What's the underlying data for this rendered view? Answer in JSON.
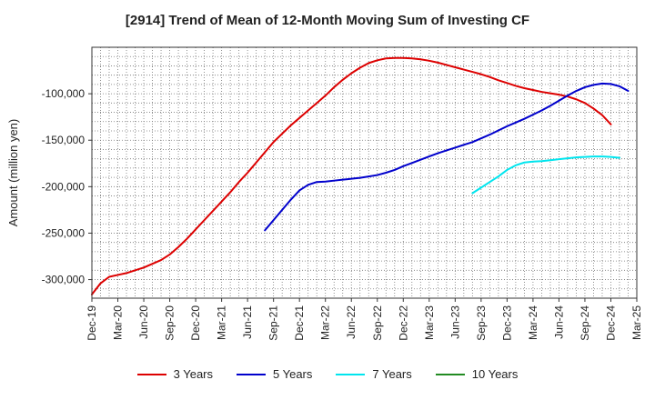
{
  "chart_data": {
    "type": "line",
    "title": "[2914]  Trend of Mean of 12-Month Moving Sum of Investing CF",
    "xlabel": "",
    "ylabel": "Amount (million yen)",
    "ylim": [
      -320000,
      -50000
    ],
    "xlim": [
      "2019-12",
      "2025-03"
    ],
    "grid": true,
    "legend_position": "bottom",
    "x_ticks": [
      "Dec-19",
      "Mar-20",
      "Jun-20",
      "Sep-20",
      "Dec-20",
      "Mar-21",
      "Jun-21",
      "Sep-21",
      "Dec-21",
      "Mar-22",
      "Jun-22",
      "Sep-22",
      "Dec-22",
      "Mar-23",
      "Jun-23",
      "Sep-23",
      "Dec-23",
      "Mar-24",
      "Jun-24",
      "Sep-24",
      "Dec-24",
      "Mar-25"
    ],
    "y_ticks": [
      {
        "value": -100000,
        "label": "-100,000"
      },
      {
        "value": -150000,
        "label": "-150,000"
      },
      {
        "value": -200000,
        "label": "-200,000"
      },
      {
        "value": -250000,
        "label": "-250,000"
      },
      {
        "value": -300000,
        "label": "-300,000"
      }
    ],
    "series": [
      {
        "name": "3 Years",
        "color": "#dd0000",
        "points": [
          [
            "2019-12",
            -316000
          ],
          [
            "2020-01",
            -304000
          ],
          [
            "2020-02",
            -297000
          ],
          [
            "2020-03",
            -295000
          ],
          [
            "2020-04",
            -293000
          ],
          [
            "2020-05",
            -290000
          ],
          [
            "2020-06",
            -287000
          ],
          [
            "2020-07",
            -283000
          ],
          [
            "2020-08",
            -279000
          ],
          [
            "2020-09",
            -273000
          ],
          [
            "2020-10",
            -265000
          ],
          [
            "2020-11",
            -256000
          ],
          [
            "2020-12",
            -246000
          ],
          [
            "2021-01",
            -236000
          ],
          [
            "2021-02",
            -226000
          ],
          [
            "2021-03",
            -216000
          ],
          [
            "2021-04",
            -206000
          ],
          [
            "2021-05",
            -195000
          ],
          [
            "2021-06",
            -185000
          ],
          [
            "2021-07",
            -174000
          ],
          [
            "2021-08",
            -163000
          ],
          [
            "2021-09",
            -152000
          ],
          [
            "2021-10",
            -143000
          ],
          [
            "2021-11",
            -134000
          ],
          [
            "2021-12",
            -126000
          ],
          [
            "2022-01",
            -118000
          ],
          [
            "2022-02",
            -110000
          ],
          [
            "2022-03",
            -102000
          ],
          [
            "2022-04",
            -93000
          ],
          [
            "2022-05",
            -85000
          ],
          [
            "2022-06",
            -78000
          ],
          [
            "2022-07",
            -72000
          ],
          [
            "2022-08",
            -67000
          ],
          [
            "2022-09",
            -64000
          ],
          [
            "2022-10",
            -62000
          ],
          [
            "2022-11",
            -61500
          ],
          [
            "2022-12",
            -61500
          ],
          [
            "2023-01",
            -62000
          ],
          [
            "2023-02",
            -63000
          ],
          [
            "2023-03",
            -64500
          ],
          [
            "2023-04",
            -66500
          ],
          [
            "2023-05",
            -69000
          ],
          [
            "2023-06",
            -71500
          ],
          [
            "2023-07",
            -74000
          ],
          [
            "2023-08",
            -76500
          ],
          [
            "2023-09",
            -79000
          ],
          [
            "2023-10",
            -82000
          ],
          [
            "2023-11",
            -85500
          ],
          [
            "2023-12",
            -88500
          ],
          [
            "2024-01",
            -91500
          ],
          [
            "2024-02",
            -94000
          ],
          [
            "2024-03",
            -96000
          ],
          [
            "2024-04",
            -98000
          ],
          [
            "2024-05",
            -99500
          ],
          [
            "2024-06",
            -101000
          ],
          [
            "2024-07",
            -103000
          ],
          [
            "2024-08",
            -106000
          ],
          [
            "2024-09",
            -110000
          ],
          [
            "2024-10",
            -116000
          ],
          [
            "2024-11",
            -123000
          ],
          [
            "2024-12",
            -133000
          ]
        ]
      },
      {
        "name": "5 Years",
        "color": "#0000cc",
        "points": [
          [
            "2021-08",
            -247000
          ],
          [
            "2021-09",
            -236000
          ],
          [
            "2021-10",
            -225000
          ],
          [
            "2021-11",
            -214000
          ],
          [
            "2021-12",
            -204000
          ],
          [
            "2022-01",
            -198000
          ],
          [
            "2022-02",
            -195000
          ],
          [
            "2022-03",
            -194500
          ],
          [
            "2022-04",
            -193500
          ],
          [
            "2022-05",
            -192500
          ],
          [
            "2022-06",
            -191500
          ],
          [
            "2022-07",
            -190500
          ],
          [
            "2022-08",
            -189000
          ],
          [
            "2022-09",
            -187500
          ],
          [
            "2022-10",
            -185000
          ],
          [
            "2022-11",
            -182000
          ],
          [
            "2022-12",
            -178000
          ],
          [
            "2023-01",
            -174500
          ],
          [
            "2023-02",
            -171000
          ],
          [
            "2023-03",
            -167500
          ],
          [
            "2023-04",
            -164000
          ],
          [
            "2023-05",
            -161000
          ],
          [
            "2023-06",
            -158000
          ],
          [
            "2023-07",
            -155000
          ],
          [
            "2023-08",
            -152000
          ],
          [
            "2023-09",
            -148000
          ],
          [
            "2023-10",
            -144000
          ],
          [
            "2023-11",
            -139500
          ],
          [
            "2023-12",
            -135000
          ],
          [
            "2024-01",
            -131000
          ],
          [
            "2024-02",
            -127000
          ],
          [
            "2024-03",
            -122500
          ],
          [
            "2024-04",
            -118000
          ],
          [
            "2024-05",
            -113000
          ],
          [
            "2024-06",
            -107500
          ],
          [
            "2024-07",
            -102000
          ],
          [
            "2024-08",
            -97000
          ],
          [
            "2024-09",
            -93000
          ],
          [
            "2024-10",
            -90500
          ],
          [
            "2024-11",
            -89000
          ],
          [
            "2024-12",
            -89500
          ],
          [
            "2025-01",
            -92000
          ],
          [
            "2025-02",
            -97000
          ]
        ]
      },
      {
        "name": "7 Years",
        "color": "#00e5ee",
        "points": [
          [
            "2023-08",
            -207000
          ],
          [
            "2023-09",
            -201000
          ],
          [
            "2023-10",
            -195000
          ],
          [
            "2023-11",
            -189000
          ],
          [
            "2023-12",
            -182000
          ],
          [
            "2024-01",
            -177000
          ],
          [
            "2024-02",
            -174000
          ],
          [
            "2024-03",
            -173000
          ],
          [
            "2024-04",
            -172500
          ],
          [
            "2024-05",
            -171500
          ],
          [
            "2024-06",
            -170500
          ],
          [
            "2024-07",
            -169500
          ],
          [
            "2024-08",
            -168500
          ],
          [
            "2024-09",
            -168000
          ],
          [
            "2024-10",
            -167500
          ],
          [
            "2024-11",
            -167500
          ],
          [
            "2024-12",
            -168000
          ],
          [
            "2025-01",
            -169000
          ]
        ]
      },
      {
        "name": "10 Years",
        "color": "#228b22",
        "points": []
      }
    ]
  }
}
